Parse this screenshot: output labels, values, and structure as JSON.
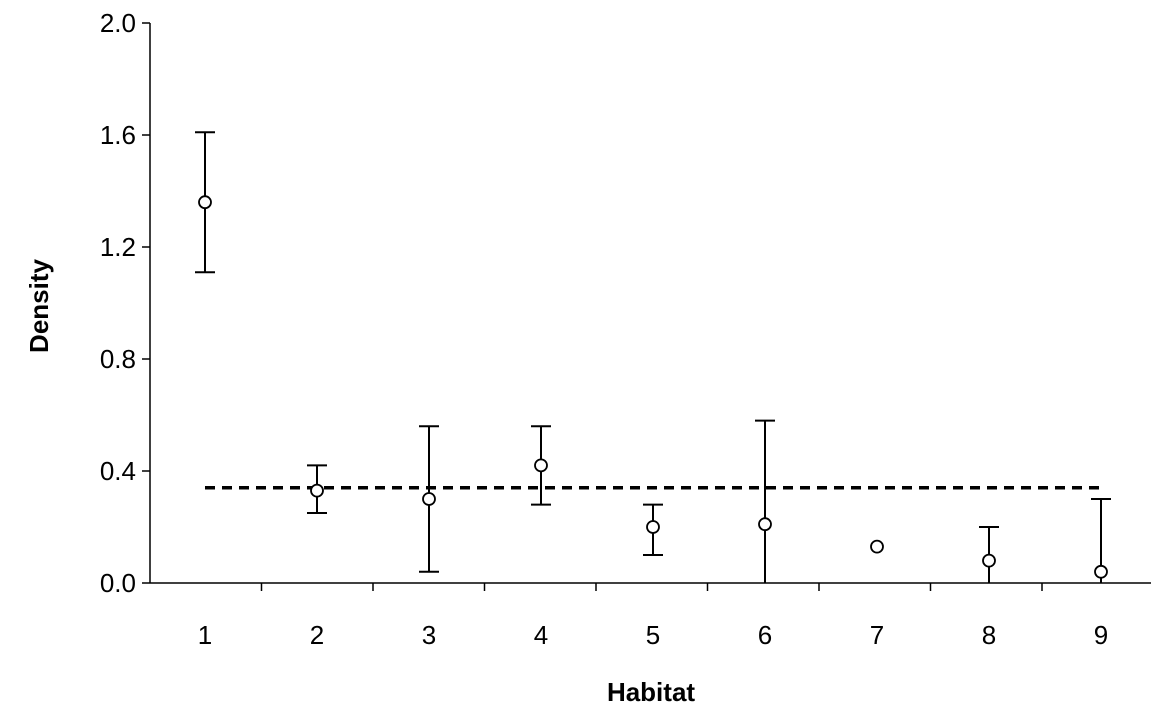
{
  "chart_data": {
    "type": "scatter",
    "title": "",
    "xlabel": "Habitat",
    "ylabel": "Density",
    "categories": [
      "1",
      "2",
      "3",
      "4",
      "5",
      "6",
      "7",
      "8",
      "9"
    ],
    "ylim": [
      0.0,
      2.0
    ],
    "yticks": [
      "0.0",
      "0.4",
      "0.8",
      "1.2",
      "1.6",
      "2.0"
    ],
    "grid": false,
    "legend": "none",
    "series": [
      {
        "values": [
          1.36,
          0.33,
          0.3,
          0.42,
          0.2,
          0.21,
          0.13,
          0.08,
          0.04
        ],
        "error_low": [
          1.11,
          0.25,
          0.04,
          0.28,
          0.1,
          0.0,
          null,
          0.0,
          0.0
        ],
        "error_high": [
          1.61,
          0.42,
          0.56,
          0.56,
          0.28,
          0.58,
          null,
          0.2,
          0.3
        ],
        "marker": "open-circle",
        "color": "#000000"
      }
    ],
    "reference_line": {
      "value": 0.34,
      "style": "dashed",
      "x_from": "1",
      "x_to": "9"
    }
  }
}
